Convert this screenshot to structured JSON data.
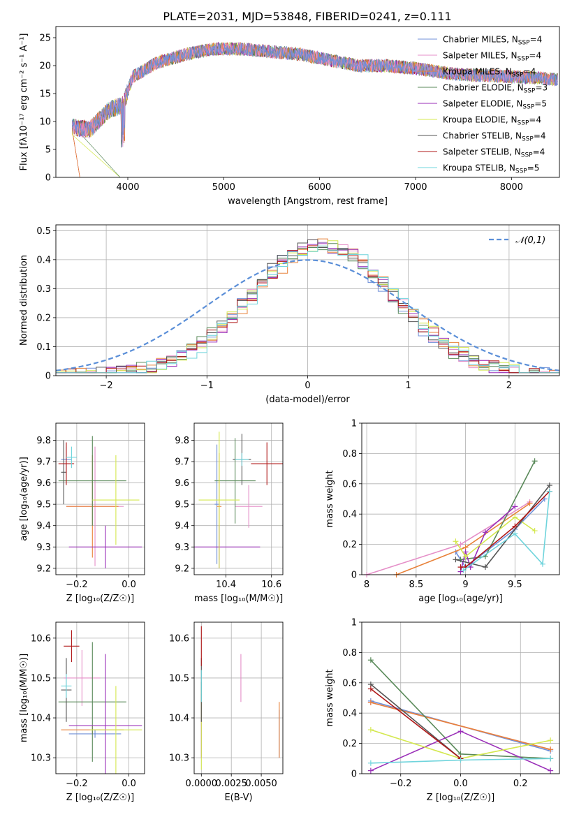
{
  "title": "PLATE=2031, MJD=53848, FIBERID=0241, z=0.111",
  "colors": {
    "chabrier_miles": "#6f8fd8",
    "salpeter_miles": "#e58fc8",
    "kroupa_miles": "#e8823a",
    "chabrier_elodie": "#5a8a5a",
    "salpeter_elodie": "#9a2fb8",
    "kroupa_elodie": "#d4e84f",
    "chabrier_stelib": "#555555",
    "salpeter_stelib": "#b01818",
    "kroupa_stelib": "#6fd4dc",
    "normal": "#5b8fd8",
    "grid": "#b0b0b0"
  },
  "chart_data": [
    {
      "id": "spectrum",
      "type": "line",
      "xlabel": "wavelength [Angstrom, rest frame]",
      "ylabel": "Flux [fλ10⁻¹⁷ erg cm⁻² s⁻¹ A⁻¹]",
      "xlim": [
        3250,
        8500
      ],
      "ylim": [
        0,
        27
      ],
      "xticks": [
        4000,
        5000,
        6000,
        7000,
        8000
      ],
      "yticks": [
        0,
        5,
        10,
        15,
        20,
        25
      ],
      "grid": false,
      "legend_position": "top-right",
      "data_profile": {
        "x": [
          3420,
          3600,
          3800,
          3950,
          4050,
          4300,
          4600,
          4900,
          5200,
          5500,
          5800,
          6100,
          6400,
          6700,
          7000,
          7200,
          7400,
          7600,
          7800,
          8000,
          8300,
          8480
        ],
        "y": [
          9,
          8.5,
          12,
          13,
          18,
          20.5,
          22,
          23,
          23,
          22.5,
          22,
          21,
          20,
          20,
          19.5,
          19,
          18.5,
          18.3,
          18.2,
          18.0,
          17.8,
          17.5
        ]
      },
      "series": [
        {
          "name": "Chabrier MILES, N_SSP=4",
          "legend": "Chabrier MILES, N",
          "n": "4",
          "color_key": "chabrier_miles"
        },
        {
          "name": "Salpeter MILES, N_SSP=4",
          "legend": "Salpeter MILES, N",
          "n": "4",
          "color_key": "salpeter_miles"
        },
        {
          "name": "Kroupa MILES, N_SSP=4",
          "legend": "Kroupa MILES, N",
          "n": "4",
          "color_key": "kroupa_miles"
        },
        {
          "name": "Chabrier ELODIE, N_SSP=3",
          "legend": "Chabrier ELODIE, N",
          "n": "3",
          "color_key": "chabrier_elodie"
        },
        {
          "name": "Salpeter ELODIE, N_SSP=5",
          "legend": "Salpeter ELODIE, N",
          "n": "5",
          "color_key": "salpeter_elodie"
        },
        {
          "name": "Kroupa ELODIE, N_SSP=4",
          "legend": "Kroupa ELODIE, N",
          "n": "4",
          "color_key": "kroupa_elodie"
        },
        {
          "name": "Chabrier STELIB, N_SSP=4",
          "legend": "Chabrier STELIB, N",
          "n": "4",
          "color_key": "chabrier_stelib"
        },
        {
          "name": "Salpeter STELIB, N_SSP=4",
          "legend": "Salpeter STELIB, N",
          "n": "4",
          "color_key": "salpeter_stelib"
        },
        {
          "name": "Kroupa STELIB, N_SSP=5",
          "legend": "Kroupa STELIB, N",
          "n": "5",
          "color_key": "kroupa_stelib"
        }
      ]
    },
    {
      "id": "residuals",
      "type": "line",
      "xlabel": "(data-model)/error",
      "ylabel": "Normed distribution",
      "xlim": [
        -2.5,
        2.5
      ],
      "ylim": [
        0,
        0.52
      ],
      "xticks": [
        -2,
        -1,
        0,
        1,
        2
      ],
      "yticks": [
        0.0,
        0.1,
        0.2,
        0.3,
        0.4,
        0.5
      ],
      "grid": true,
      "legend": "𝒩(0,1)",
      "legend_position": "top-right"
    },
    {
      "id": "age_vs_Z",
      "type": "scatter",
      "xlabel": "Z [log₁₀(Z/Z☉)]",
      "ylabel": "age  [log₁₀(age/yr)]",
      "xlim": [
        -0.28,
        0.06
      ],
      "ylim": [
        9.17,
        9.88
      ],
      "xticks": [
        -0.2,
        0.0
      ],
      "xtick_labels": [
        "−0.2",
        "0.0"
      ],
      "yticks": [
        9.2,
        9.3,
        9.4,
        9.5,
        9.6,
        9.7,
        9.8
      ],
      "grid": true,
      "points": [
        {
          "x": -0.24,
          "y": 9.71,
          "ex": 0.02,
          "ey": 0.06,
          "color_key": "chabrier_miles"
        },
        {
          "x": -0.13,
          "y": 9.49,
          "ex": 0.11,
          "ey": 0.28,
          "color_key": "salpeter_miles"
        },
        {
          "x": -0.14,
          "y": 9.49,
          "ex": 0.1,
          "ey": 0.24,
          "color_key": "kroupa_miles"
        },
        {
          "x": -0.14,
          "y": 9.61,
          "ex": 0.13,
          "ey": 0.21,
          "color_key": "chabrier_elodie"
        },
        {
          "x": -0.09,
          "y": 9.3,
          "ex": 0.14,
          "ey": 0.1,
          "color_key": "salpeter_elodie"
        },
        {
          "x": -0.05,
          "y": 9.52,
          "ex": 0.09,
          "ey": 0.21,
          "color_key": "kroupa_elodie"
        },
        {
          "x": -0.25,
          "y": 9.65,
          "ex": 0.01,
          "ey": 0.15,
          "color_key": "chabrier_stelib"
        },
        {
          "x": -0.24,
          "y": 9.69,
          "ex": 0.03,
          "ey": 0.1,
          "color_key": "salpeter_stelib"
        },
        {
          "x": -0.22,
          "y": 9.72,
          "ex": 0.02,
          "ey": 0.05,
          "color_key": "kroupa_stelib"
        }
      ]
    },
    {
      "id": "age_vs_mass",
      "type": "scatter",
      "xlabel": "mass [log₁₀(M/M☉)]",
      "ylabel": "",
      "xlim": [
        10.26,
        10.65
      ],
      "ylim": [
        9.17,
        9.88
      ],
      "xticks": [
        10.4,
        10.6
      ],
      "yticks": [
        9.2,
        9.3,
        9.4,
        9.5,
        9.6,
        9.7,
        9.8
      ],
      "grid": true,
      "points": [
        {
          "x": 10.36,
          "y": 9.5,
          "ex": 0.01,
          "ey": 0.28,
          "color_key": "chabrier_miles"
        },
        {
          "x": 10.5,
          "y": 9.49,
          "ex": 0.06,
          "ey": 0.1,
          "color_key": "salpeter_miles"
        },
        {
          "x": 10.37,
          "y": 9.49,
          "ex": 0.01,
          "ey": 0.25,
          "color_key": "kroupa_miles"
        },
        {
          "x": 10.44,
          "y": 9.61,
          "ex": 0.09,
          "ey": 0.2,
          "color_key": "chabrier_elodie"
        },
        {
          "x": 10.37,
          "y": 9.3,
          "ex": 0.18,
          "ey": 0.1,
          "color_key": "salpeter_elodie"
        },
        {
          "x": 10.37,
          "y": 9.52,
          "ex": 0.09,
          "ey": 0.32,
          "color_key": "kroupa_elodie"
        },
        {
          "x": 10.47,
          "y": 9.71,
          "ex": 0.04,
          "ey": 0.12,
          "color_key": "chabrier_stelib"
        },
        {
          "x": 10.58,
          "y": 9.69,
          "ex": 0.07,
          "ey": 0.1,
          "color_key": "salpeter_stelib"
        },
        {
          "x": 10.47,
          "y": 9.71,
          "ex": 0.03,
          "ey": 0.03,
          "color_key": "kroupa_stelib"
        }
      ]
    },
    {
      "id": "weight_vs_age",
      "type": "line",
      "xlabel": "age  [log₁₀(age/yr)]",
      "ylabel": "mass weight",
      "xlim": [
        7.95,
        9.95
      ],
      "ylim": [
        0,
        1
      ],
      "xticks": [
        8.0,
        8.5,
        9.0,
        9.5
      ],
      "yticks": [
        0.0,
        0.2,
        0.4,
        0.6,
        0.8,
        1.0
      ],
      "grid": true,
      "series": [
        {
          "color_key": "chabrier_miles",
          "x": [
            8.9,
            9.0,
            9.5,
            9.8
          ],
          "y": [
            0.15,
            0.05,
            0.3,
            0.5
          ]
        },
        {
          "color_key": "salpeter_miles",
          "x": [
            8.0,
            8.95,
            9.65
          ],
          "y": [
            0.0,
            0.2,
            0.48
          ]
        },
        {
          "color_key": "kroupa_miles",
          "x": [
            8.3,
            9.0,
            9.65
          ],
          "y": [
            0.0,
            0.18,
            0.47
          ]
        },
        {
          "color_key": "chabrier_elodie",
          "x": [
            8.95,
            9.2,
            9.7
          ],
          "y": [
            0.1,
            0.12,
            0.75
          ]
        },
        {
          "color_key": "salpeter_elodie",
          "x": [
            8.95,
            9.0,
            9.05,
            9.2,
            9.5
          ],
          "y": [
            0.02,
            0.15,
            0.05,
            0.28,
            0.45
          ]
        },
        {
          "color_key": "kroupa_elodie",
          "x": [
            8.9,
            9.0,
            9.5,
            9.7
          ],
          "y": [
            0.22,
            0.12,
            0.38,
            0.29
          ]
        },
        {
          "color_key": "chabrier_stelib",
          "x": [
            8.9,
            9.2,
            9.85
          ],
          "y": [
            0.1,
            0.05,
            0.59
          ]
        },
        {
          "color_key": "salpeter_stelib",
          "x": [
            8.95,
            9.0,
            9.5,
            9.85
          ],
          "y": [
            0.05,
            0.05,
            0.32,
            0.55
          ]
        },
        {
          "color_key": "kroupa_stelib",
          "x": [
            8.98,
            9.5,
            9.78,
            9.85
          ],
          "y": [
            0.03,
            0.27,
            0.07,
            0.55
          ]
        }
      ]
    },
    {
      "id": "mass_vs_Z",
      "type": "scatter",
      "xlabel": "Z [log₁₀(Z/Z☉)]",
      "ylabel": "mass [log₁₀(M/M☉)]",
      "xlim": [
        -0.28,
        0.06
      ],
      "ylim": [
        10.26,
        10.64
      ],
      "xticks": [
        -0.2,
        0.0
      ],
      "xtick_labels": [
        "−0.2",
        "0.0"
      ],
      "yticks": [
        10.3,
        10.4,
        10.5,
        10.6
      ],
      "grid": true,
      "points": [
        {
          "x": -0.13,
          "y": 10.36,
          "ex": 0.1,
          "ey": 0.01,
          "color_key": "chabrier_miles"
        },
        {
          "x": -0.18,
          "y": 10.5,
          "ex": 0.07,
          "ey": 0.07,
          "color_key": "salpeter_miles"
        },
        {
          "x": -0.14,
          "y": 10.37,
          "ex": 0.12,
          "ey": 0.01,
          "color_key": "kroupa_miles"
        },
        {
          "x": -0.14,
          "y": 10.44,
          "ex": 0.13,
          "ey": 0.15,
          "color_key": "chabrier_elodie"
        },
        {
          "x": -0.09,
          "y": 10.38,
          "ex": 0.14,
          "ey": 0.18,
          "color_key": "salpeter_elodie"
        },
        {
          "x": -0.05,
          "y": 10.37,
          "ex": 0.1,
          "ey": 0.11,
          "color_key": "kroupa_elodie"
        },
        {
          "x": -0.24,
          "y": 10.47,
          "ex": 0.02,
          "ey": 0.08,
          "color_key": "chabrier_stelib"
        },
        {
          "x": -0.22,
          "y": 10.58,
          "ex": 0.03,
          "ey": 0.04,
          "color_key": "salpeter_stelib"
        },
        {
          "x": -0.24,
          "y": 10.48,
          "ex": 0.02,
          "ey": 0.03,
          "color_key": "kroupa_stelib"
        }
      ]
    },
    {
      "id": "mass_vs_EBV",
      "type": "scatter",
      "xlabel": "E(B-V)",
      "ylabel": "",
      "xlim": [
        -0.0006,
        0.0068
      ],
      "ylim": [
        10.26,
        10.64
      ],
      "xticks": [
        0.0,
        0.0025,
        0.005
      ],
      "xtick_labels": [
        "0.0000",
        "0.0025",
        "0.0050"
      ],
      "yticks": [
        10.3,
        10.4,
        10.5,
        10.6
      ],
      "grid": true,
      "points": [
        {
          "x": 0.0065,
          "y": 10.36,
          "ex": 0,
          "ey": 0.06,
          "color_key": "chabrier_miles"
        },
        {
          "x": 0.0033,
          "y": 10.5,
          "ex": 0,
          "ey": 0.06,
          "color_key": "salpeter_miles"
        },
        {
          "x": 0.0065,
          "y": 10.37,
          "ex": 0,
          "ey": 0.07,
          "color_key": "kroupa_miles"
        },
        {
          "x": 0.0,
          "y": 10.44,
          "ex": 0,
          "ey": 0.05,
          "color_key": "chabrier_elodie"
        },
        {
          "x": 0.0,
          "y": 10.38,
          "ex": 0,
          "ey": 0.08,
          "color_key": "salpeter_elodie"
        },
        {
          "x": 0.0,
          "y": 10.37,
          "ex": 0,
          "ey": 0.1,
          "color_key": "kroupa_elodie"
        },
        {
          "x": 0.0,
          "y": 10.47,
          "ex": 0,
          "ey": 0.08,
          "color_key": "chabrier_stelib"
        },
        {
          "x": 0.0,
          "y": 10.58,
          "ex": 0,
          "ey": 0.05,
          "color_key": "salpeter_stelib"
        },
        {
          "x": 0.0,
          "y": 10.48,
          "ex": 0,
          "ey": 0.04,
          "color_key": "kroupa_stelib"
        }
      ]
    },
    {
      "id": "weight_vs_Z",
      "type": "line",
      "xlabel": "Z [log₁₀(Z/Z☉)]",
      "ylabel": "mass weight",
      "xlim": [
        -0.33,
        0.33
      ],
      "ylim": [
        0,
        1
      ],
      "xticks": [
        -0.2,
        0.0,
        0.2
      ],
      "xtick_labels": [
        "−0.2",
        "0.0",
        "0.2"
      ],
      "yticks": [
        0.0,
        0.2,
        0.4,
        0.6,
        0.8,
        1.0
      ],
      "grid": true,
      "series": [
        {
          "color_key": "chabrier_miles",
          "x": [
            -0.3,
            0.3
          ],
          "y": [
            0.48,
            0.15
          ]
        },
        {
          "color_key": "salpeter_miles",
          "x": [
            -0.3,
            0.3
          ],
          "y": [
            0.47,
            0.16
          ]
        },
        {
          "color_key": "kroupa_miles",
          "x": [
            -0.3,
            0.3
          ],
          "y": [
            0.47,
            0.16
          ]
        },
        {
          "color_key": "chabrier_elodie",
          "x": [
            -0.3,
            0.0,
            0.3
          ],
          "y": [
            0.75,
            0.13,
            0.1
          ]
        },
        {
          "color_key": "salpeter_elodie",
          "x": [
            -0.3,
            0.0,
            0.3
          ],
          "y": [
            0.02,
            0.28,
            0.02
          ]
        },
        {
          "color_key": "kroupa_elodie",
          "x": [
            -0.3,
            0.0,
            0.3
          ],
          "y": [
            0.29,
            0.1,
            0.22
          ]
        },
        {
          "color_key": "chabrier_stelib",
          "x": [
            -0.3,
            0.0
          ],
          "y": [
            0.59,
            0.1
          ]
        },
        {
          "color_key": "salpeter_stelib",
          "x": [
            -0.3,
            0.0
          ],
          "y": [
            0.56,
            0.1
          ]
        },
        {
          "color_key": "kroupa_stelib",
          "x": [
            -0.3,
            0.0,
            0.3
          ],
          "y": [
            0.07,
            0.09,
            0.1
          ]
        }
      ]
    }
  ]
}
